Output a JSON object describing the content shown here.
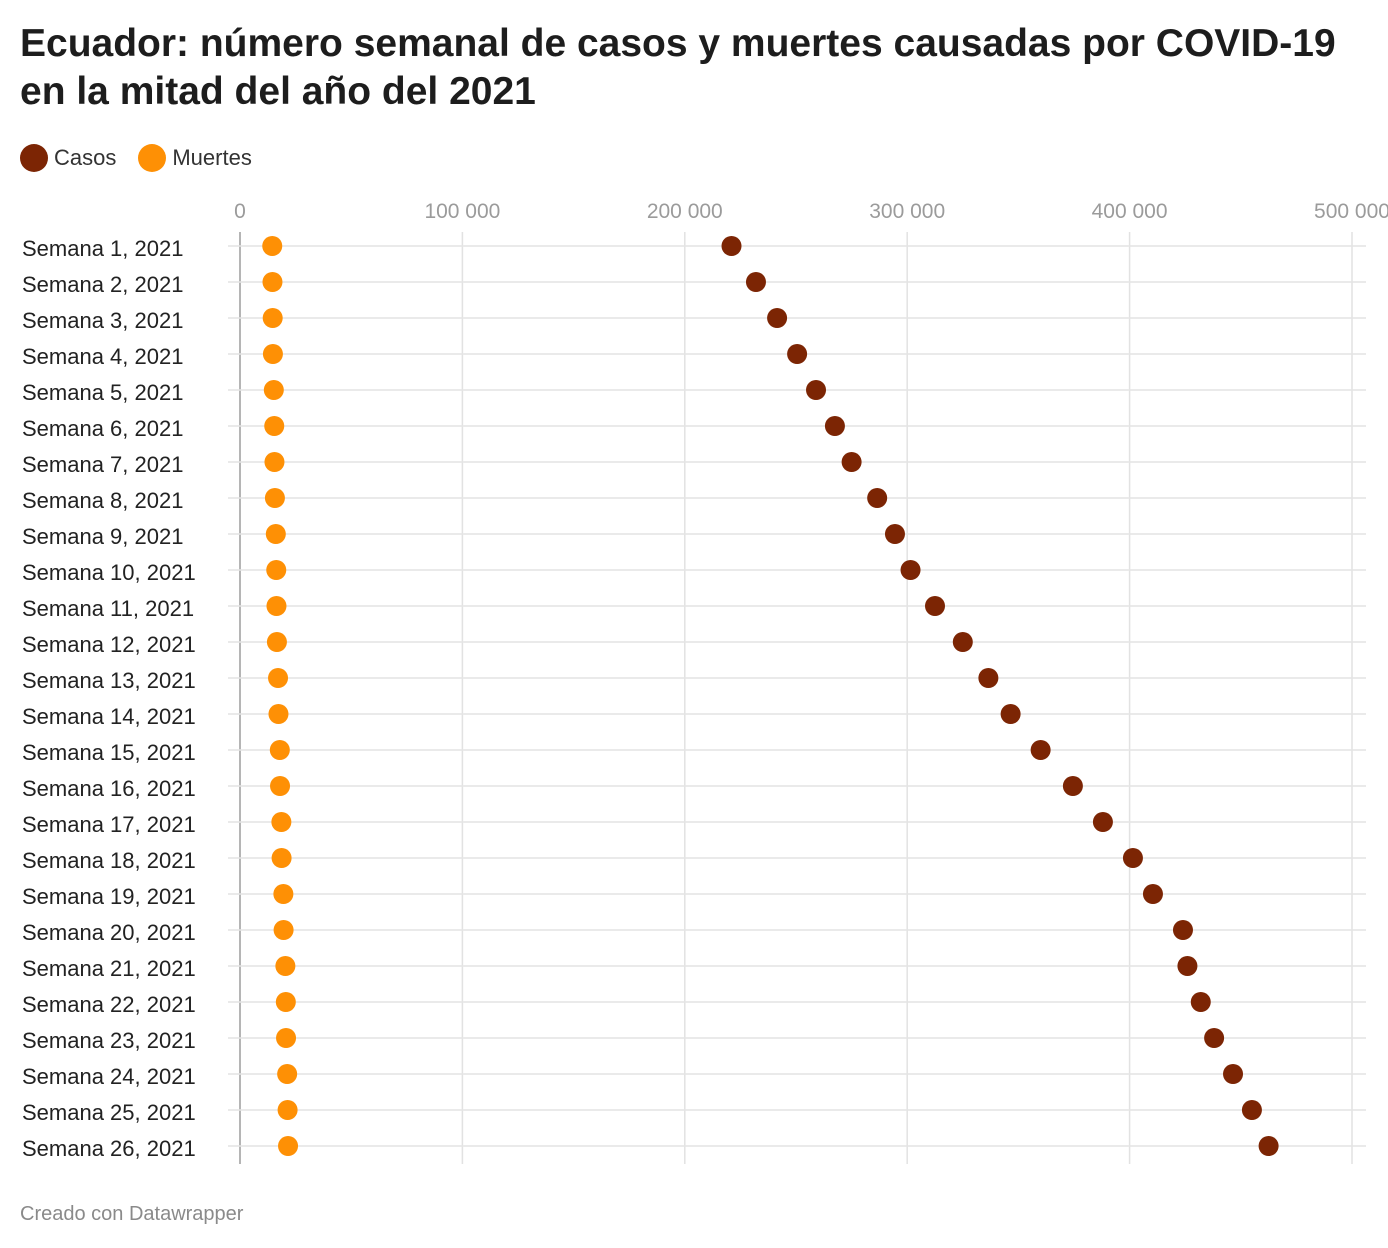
{
  "title": "Ecuador: número semanal de casos y muertes causadas por COVID-19 en la mitad del año del 2021",
  "footer": "Creado con Datawrapper",
  "colors": {
    "casos": "#7c2504",
    "muertes": "#fe9005"
  },
  "chart_data": {
    "type": "scatter",
    "title": "Ecuador: número semanal de casos y muertes causadas por COVID-19 en la mitad del año del 2021",
    "xlim": [
      0,
      500000
    ],
    "x_ticks": [
      0,
      100000,
      200000,
      300000,
      400000,
      500000
    ],
    "x_tick_labels": [
      "0",
      "100 000",
      "200 000",
      "300 000",
      "400 000",
      "500 000"
    ],
    "grid": true,
    "legend_position": "top-left",
    "categories": [
      "Semana 1, 2021",
      "Semana 2, 2021",
      "Semana 3, 2021",
      "Semana 4, 2021",
      "Semana 5, 2021",
      "Semana 6, 2021",
      "Semana 7, 2021",
      "Semana 8, 2021",
      "Semana 9, 2021",
      "Semana 10, 2021",
      "Semana 11, 2021",
      "Semana 12, 2021",
      "Semana 13, 2021",
      "Semana 14, 2021",
      "Semana 15, 2021",
      "Semana 16, 2021",
      "Semana 17, 2021",
      "Semana 18, 2021",
      "Semana 19, 2021",
      "Semana 20, 2021",
      "Semana 21, 2021",
      "Semana 22, 2021",
      "Semana 23, 2021",
      "Semana 24, 2021",
      "Semana 25, 2021",
      "Semana 26, 2021"
    ],
    "series": [
      {
        "name": "Casos",
        "color": "#7c2504",
        "values": [
          221000,
          232000,
          241500,
          250500,
          259000,
          267500,
          275000,
          286500,
          294500,
          301500,
          312500,
          325000,
          336500,
          346500,
          360000,
          374500,
          388000,
          401500,
          410500,
          424000,
          426000,
          432000,
          438000,
          446500,
          455000,
          462500
        ]
      },
      {
        "name": "Muertes",
        "color": "#fe9005",
        "values": [
          14500,
          14600,
          14700,
          14800,
          15200,
          15400,
          15500,
          15700,
          16100,
          16300,
          16400,
          16600,
          17100,
          17300,
          17900,
          18000,
          18600,
          18700,
          19500,
          19600,
          20400,
          20600,
          20700,
          21200,
          21400,
          21600
        ]
      }
    ]
  }
}
